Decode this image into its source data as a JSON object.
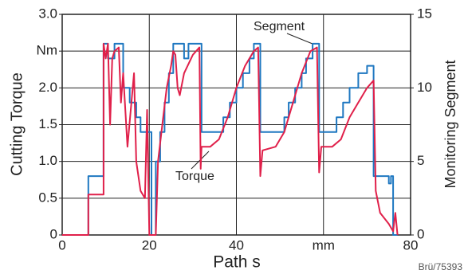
{
  "chart_data": {
    "type": "line",
    "xlabel": "Path s",
    "ylabel": "Cutting Torque",
    "y2label": "Monitoring Segment",
    "annotations": [
      "Segment",
      "Torque",
      "Brü/75393"
    ],
    "xlim": [
      0,
      80
    ],
    "xticks": [
      0,
      20,
      40,
      {
        "value": 60,
        "label": "mm"
      },
      80
    ],
    "ylim": [
      0,
      3
    ],
    "yticks": [
      0,
      0.5,
      {
        "value": 1,
        "label": "1.0"
      },
      1.5,
      {
        "value": 2,
        "label": "2.0"
      },
      {
        "value": 2.5,
        "label": "Nm"
      },
      {
        "value": 3,
        "label": "3.0"
      }
    ],
    "y2lim": [
      0,
      15
    ],
    "y2ticks": [
      0,
      5,
      10,
      15
    ],
    "grid": true,
    "series": [
      {
        "name": "Segment",
        "color": "#1f78c1",
        "axis": "y2",
        "x": [
          0,
          6,
          6,
          9.5,
          9.5,
          10.5,
          10.5,
          12,
          12,
          14,
          14,
          15.5,
          15.5,
          17,
          17,
          18,
          18,
          19,
          19,
          20.5,
          20.5,
          21.5,
          21.5,
          22.5,
          22.5,
          23.5,
          23.5,
          24.5,
          24.5,
          25.5,
          25.5,
          28,
          28,
          29,
          29,
          31.5,
          31.5,
          32,
          32,
          37,
          37,
          38.5,
          38.5,
          40,
          40,
          41.5,
          41.5,
          43,
          43,
          44,
          44,
          45.5,
          45.5,
          51,
          51,
          52,
          52,
          53.5,
          53.5,
          55,
          55,
          56,
          56,
          57.5,
          57.5,
          59,
          59,
          63,
          63,
          64.5,
          64.5,
          66,
          66,
          68,
          68,
          70,
          70,
          71.5,
          71.5,
          75,
          75,
          75.5,
          75.5,
          76,
          76,
          77
        ],
        "values": [
          0,
          0,
          4,
          4,
          13,
          13,
          12,
          12,
          13,
          13,
          10,
          10,
          9,
          9,
          8,
          8,
          7,
          7,
          7,
          7,
          0,
          0,
          5,
          5,
          7,
          7,
          9,
          9,
          11,
          11,
          13,
          13,
          12,
          12,
          13,
          13,
          13,
          13,
          7,
          7,
          8,
          8,
          9,
          9,
          10,
          10,
          11,
          11,
          12,
          12,
          13,
          13,
          7,
          7,
          8,
          8,
          9,
          9,
          10,
          10,
          11,
          11,
          12,
          12,
          13,
          13,
          7,
          7,
          8,
          8,
          9,
          9,
          10,
          10,
          11,
          11,
          11.5,
          11.5,
          4,
          4,
          3.5,
          3.5,
          4,
          4,
          0,
          0
        ]
      },
      {
        "name": "Torque",
        "color": "#e0204a",
        "axis": "y",
        "x": [
          0,
          6,
          6,
          9.5,
          9.5,
          10,
          10.5,
          11,
          11.5,
          12,
          13,
          13.5,
          14,
          15,
          16.5,
          17,
          18,
          19,
          19.5,
          20,
          21.5,
          22,
          23,
          24,
          25,
          25.5,
          26,
          26.5,
          27,
          28,
          30,
          31.5,
          31.8,
          32,
          34,
          36,
          38,
          40,
          42,
          44,
          45,
          45.5,
          46,
          49,
          51,
          53,
          55,
          57,
          58.5,
          59,
          59.5,
          62,
          64,
          66,
          68,
          70,
          71.5,
          72,
          73,
          75,
          76,
          76.5,
          77
        ],
        "values": [
          0,
          0,
          0.55,
          0.55,
          2.6,
          2.4,
          2.6,
          1.5,
          2.4,
          2.5,
          2.55,
          1.8,
          2.2,
          1.2,
          2.2,
          1.0,
          0.6,
          0.5,
          1.7,
          0,
          0,
          1.0,
          1.5,
          2.0,
          2.3,
          2.5,
          2.45,
          2.0,
          1.9,
          2.2,
          2.45,
          2.55,
          0.9,
          1.2,
          1.2,
          1.3,
          1.6,
          2.0,
          2.3,
          2.5,
          2.55,
          0.8,
          1.15,
          1.2,
          1.4,
          1.8,
          2.2,
          2.5,
          2.55,
          0.85,
          1.2,
          1.2,
          1.3,
          1.6,
          1.8,
          2.0,
          2.1,
          0.6,
          0.3,
          0.15,
          0.05,
          0.3,
          0
        ]
      }
    ]
  }
}
